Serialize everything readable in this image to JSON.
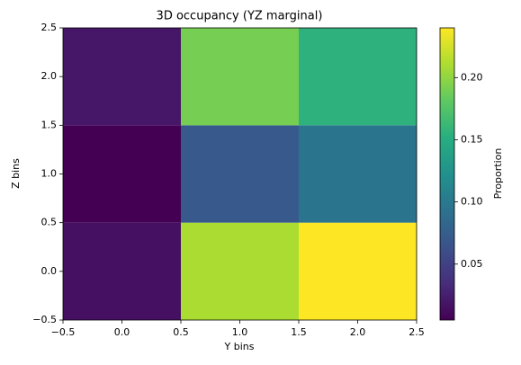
{
  "chart_data": {
    "type": "heatmap",
    "title": "3D occupancy (YZ marginal)",
    "x_label": "Y bins",
    "y_label": "Z bins",
    "colorbar_label": "Proportion",
    "x": [
      0,
      1,
      2
    ],
    "y": [
      0,
      1,
      2
    ],
    "values": [
      [
        0.015,
        0.21,
        0.24
      ],
      [
        0.005,
        0.07,
        0.095
      ],
      [
        0.02,
        0.19,
        0.155
      ]
    ],
    "colormap": "viridis",
    "clim": [
      0.005,
      0.24
    ],
    "xlim": [
      -0.5,
      2.5
    ],
    "ylim": [
      -0.5,
      2.5
    ],
    "xticks": [
      {
        "value": -0.5,
        "label": "−0.5"
      },
      {
        "value": 0,
        "label": "0.0"
      },
      0.5,
      {
        "value": 1,
        "label": "1.0"
      },
      1.5,
      {
        "value": 2,
        "label": "2.0"
      },
      2.5
    ],
    "yticks": [
      {
        "value": -0.5,
        "label": "−0.5"
      },
      {
        "value": 0,
        "label": "0.0"
      },
      0.5,
      {
        "value": 1,
        "label": "1.0"
      },
      1.5,
      {
        "value": 2,
        "label": "2.0"
      },
      2.5
    ],
    "cticks": [
      0.05,
      {
        "value": 0.1,
        "label": "0.10"
      },
      0.15,
      {
        "value": 0.2,
        "label": "0.20"
      }
    ]
  }
}
